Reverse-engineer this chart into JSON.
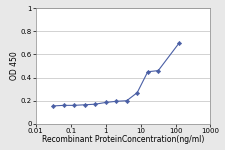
{
  "x": [
    0.031,
    0.062,
    0.125,
    0.25,
    0.5,
    1.0,
    2.0,
    4.0,
    8.0,
    16.0,
    32.0,
    128.0
  ],
  "y": [
    0.155,
    0.16,
    0.16,
    0.165,
    0.17,
    0.185,
    0.195,
    0.2,
    0.27,
    0.45,
    0.46,
    0.7
  ],
  "line_color": "#4a5fa5",
  "marker_color": "#4a5fa5",
  "marker": "D",
  "marker_size": 2.2,
  "xlabel": "Recombinant ProteinConcentration(ng/ml)",
  "ylabel": "OD 450",
  "xlim": [
    0.01,
    1000
  ],
  "ylim": [
    0,
    1
  ],
  "yticks": [
    0,
    0.2,
    0.4,
    0.6,
    0.8,
    1
  ],
  "ytick_labels": [
    "0",
    "0.2",
    "0.4",
    "0.6",
    "0.8",
    "1"
  ],
  "xticks": [
    0.01,
    0.1,
    1,
    10,
    100,
    1000
  ],
  "xtick_labels": [
    "0.01",
    "0.1",
    "1",
    "10",
    "100",
    "1000"
  ],
  "background_color": "#e8e8e8",
  "plot_bg_color": "#ffffff",
  "axis_fontsize": 5.5,
  "tick_fontsize": 5.0,
  "line_width": 0.8,
  "grid_color": "#c0c0c0",
  "grid_linewidth": 0.5
}
